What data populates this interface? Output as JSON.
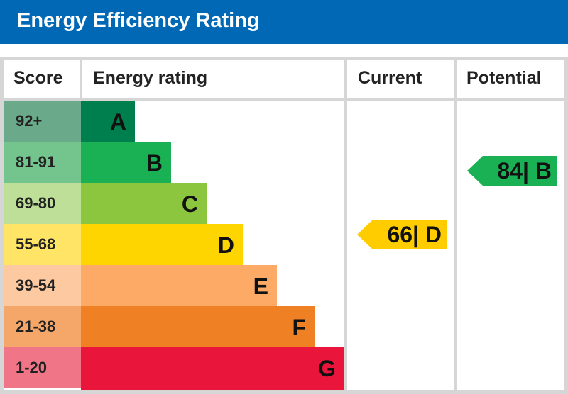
{
  "title": "Energy Efficiency Rating",
  "headers": {
    "score": "Score",
    "rating": "Energy rating",
    "current": "Current",
    "potential": "Potential"
  },
  "chart_data": {
    "type": "bar",
    "bands": [
      {
        "letter": "A",
        "range": "92+",
        "color": "#007f4e",
        "score_color": "#6aa989"
      },
      {
        "letter": "B",
        "range": "81-91",
        "color": "#1ab154",
        "score_color": "#74c58d"
      },
      {
        "letter": "C",
        "range": "69-80",
        "color": "#8cc63f",
        "score_color": "#bddf97"
      },
      {
        "letter": "D",
        "range": "55-68",
        "color": "#ffd500",
        "score_color": "#ffe466"
      },
      {
        "letter": "E",
        "range": "39-54",
        "color": "#fcaa65",
        "score_color": "#fdc9a0"
      },
      {
        "letter": "F",
        "range": "21-38",
        "color": "#ef8023",
        "score_color": "#f5a76a"
      },
      {
        "letter": "G",
        "range": "1-20",
        "color": "#e9153b",
        "score_color": "#f07587"
      }
    ],
    "current": {
      "value": 66,
      "band": "D",
      "label": "66| D",
      "color": "#ffcc00"
    },
    "potential": {
      "value": 84,
      "band": "B",
      "label": "84| B",
      "color": "#1ab154"
    }
  }
}
